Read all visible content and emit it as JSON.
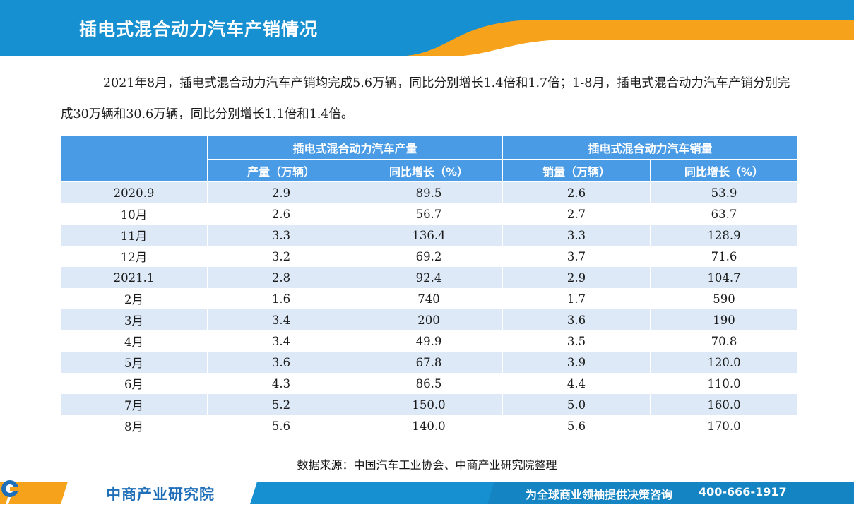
{
  "header": {
    "title": "插电式混合动力汽车产销情况"
  },
  "intro": "2021年8月，插电式混合动力汽车产销均完成5.6万辆，同比分别增长1.4倍和1.7倍；1-8月，插电式混合动力汽车产销分别完成30万辆和30.6万辆，同比分别增长1.1倍和1.4倍。",
  "table": {
    "group_headers": [
      "插电式混合动力汽车产量",
      "插电式混合动力汽车销量"
    ],
    "sub_headers": [
      "产量（万辆）",
      "同比增长（%）",
      "销量（万辆）",
      "同比增长（%）"
    ],
    "rows": [
      [
        "2020.9",
        "2.9",
        "89.5",
        "2.6",
        "53.9"
      ],
      [
        "10月",
        "2.6",
        "56.7",
        "2.7",
        "63.7"
      ],
      [
        "11月",
        "3.3",
        "136.4",
        "3.3",
        "128.9"
      ],
      [
        "12月",
        "3.2",
        "69.2",
        "3.7",
        "71.6"
      ],
      [
        "2021.1",
        "2.8",
        "92.4",
        "2.9",
        "104.7"
      ],
      [
        "2月",
        "1.6",
        "740",
        "1.7",
        "590"
      ],
      [
        "3月",
        "3.4",
        "200",
        "3.6",
        "190"
      ],
      [
        "4月",
        "3.4",
        "49.9",
        "3.5",
        "70.8"
      ],
      [
        "5月",
        "3.6",
        "67.8",
        "3.9",
        "120.0"
      ],
      [
        "6月",
        "4.3",
        "86.5",
        "4.4",
        "110.0"
      ],
      [
        "7月",
        "5.2",
        "150.0",
        "5.0",
        "160.0"
      ],
      [
        "8月",
        "5.6",
        "140.0",
        "5.6",
        "170.0"
      ]
    ]
  },
  "source": "数据来源：中国汽车工业协会、中商产业研究院整理",
  "footer": {
    "brand": "中商产业研究院",
    "slogan": "为全球商业领袖提供决策咨询",
    "phone": "400-666-1917"
  },
  "colors": {
    "header_blue": "#1690d0",
    "accent_orange": "#f7a21b",
    "table_header": "#4a9be6",
    "row_stripe": "#dde9f7",
    "brand_blue": "#1f6fb8"
  }
}
